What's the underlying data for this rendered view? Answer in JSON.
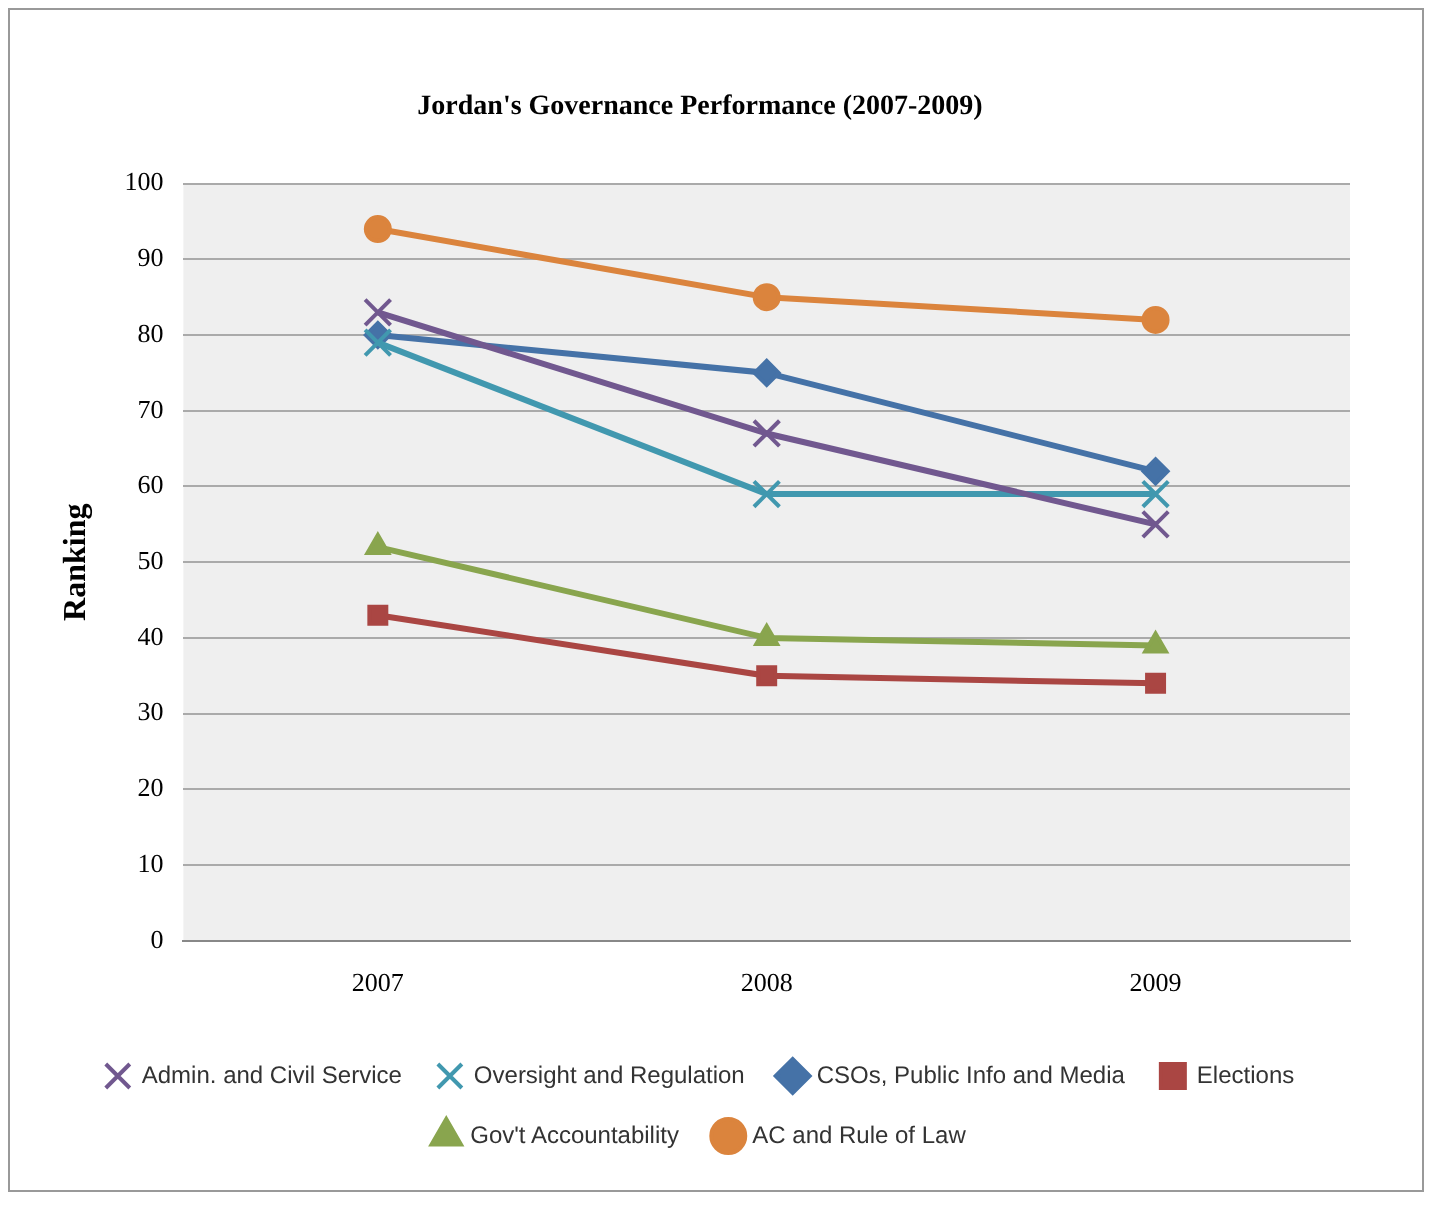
{
  "chart_data": {
    "type": "line",
    "title": "Jordan's Governance Performance (2007-2009)",
    "ylabel": "Ranking",
    "categories": [
      "2007",
      "2008",
      "2009"
    ],
    "series": [
      {
        "name": "CSOs, Public Info and Media",
        "color": "#4572a7",
        "marker": "diamond",
        "values": [
          80,
          75,
          62
        ]
      },
      {
        "name": "Elections",
        "color": "#aa4643",
        "marker": "square",
        "values": [
          43,
          35,
          34
        ]
      },
      {
        "name": "Gov't Accountability",
        "color": "#89a54e",
        "marker": "triangle",
        "values": [
          52,
          40,
          39
        ]
      },
      {
        "name": "Admin. and Civil Service",
        "color": "#71588f",
        "marker": "cross",
        "values": [
          83,
          67,
          55
        ]
      },
      {
        "name": "Oversight and Regulation",
        "color": "#4198af",
        "marker": "cross",
        "values": [
          79,
          59,
          59
        ]
      },
      {
        "name": "AC and Rule of Law",
        "color": "#db843d",
        "marker": "circle",
        "values": [
          94,
          85,
          82
        ]
      }
    ],
    "ylim": [
      0,
      100
    ],
    "yticks": [
      0,
      10,
      20,
      30,
      40,
      50,
      60,
      70,
      80,
      90,
      100
    ],
    "grid": "y",
    "legend": "bottom"
  }
}
